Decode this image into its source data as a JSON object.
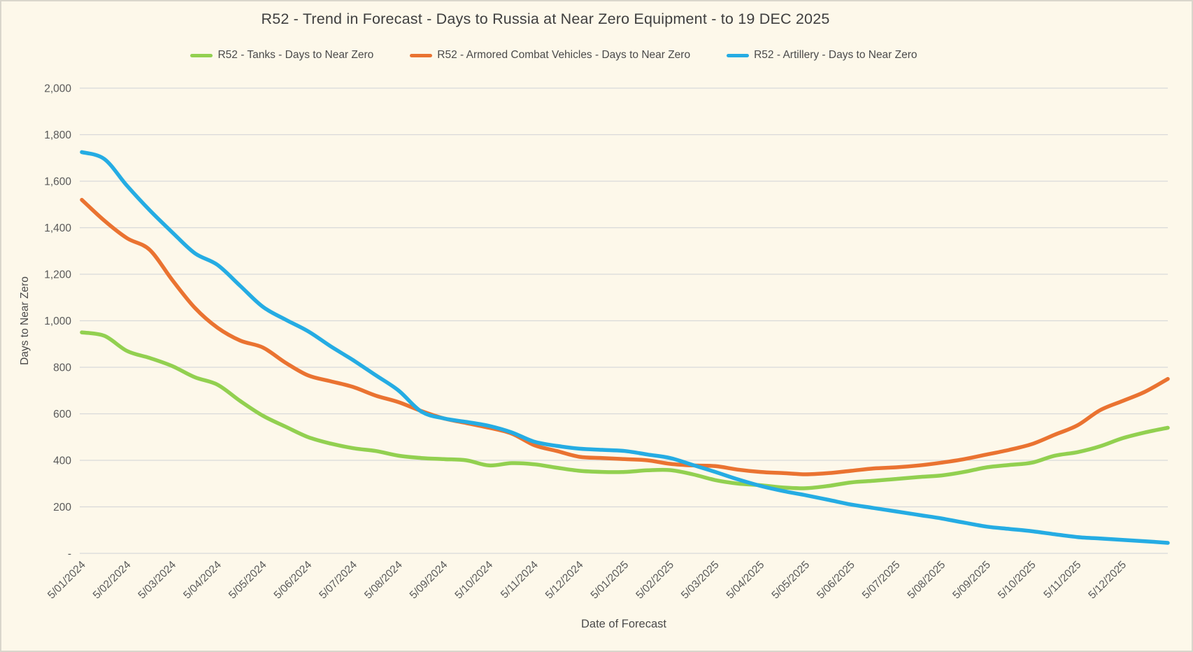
{
  "chart_data": {
    "type": "line",
    "title": "R52 - Trend in Forecast - Days to Russia at Near Zero Equipment - to 19 DEC 2025",
    "xlabel": "Date of Forecast",
    "ylabel": "Days to Near Zero",
    "ylim": [
      0,
      2000
    ],
    "grid": true,
    "legend_position": "top",
    "background_color": "#FDF8EA",
    "gridline_color": "#D9D9D9",
    "tick_text_color": "#595959",
    "title_text_color": "#3F3F3F",
    "y_ticks": [
      {
        "value": 2000,
        "label": "2,000"
      },
      {
        "value": 1800,
        "label": "1,800"
      },
      {
        "value": 1600,
        "label": "1,600"
      },
      {
        "value": 1400,
        "label": "1,400"
      },
      {
        "value": 1200,
        "label": "1,200"
      },
      {
        "value": 1000,
        "label": "1,000"
      },
      {
        "value": 800,
        "label": "800"
      },
      {
        "value": 600,
        "label": "600"
      },
      {
        "value": 400,
        "label": "400"
      },
      {
        "value": 200,
        "label": "200"
      },
      {
        "value": 0,
        "label": "-"
      }
    ],
    "x_tick_labels": [
      "5/01/2024",
      "5/02/2024",
      "5/03/2024",
      "5/04/2024",
      "5/05/2024",
      "5/06/2024",
      "5/07/2024",
      "5/08/2024",
      "5/09/2024",
      "5/10/2024",
      "5/11/2024",
      "5/12/2024",
      "5/01/2025",
      "5/02/2025",
      "5/03/2025",
      "5/04/2025",
      "5/05/2025",
      "5/06/2025",
      "5/07/2025",
      "5/08/2025",
      "5/09/2025",
      "5/10/2025",
      "5/11/2025",
      "5/12/2025"
    ],
    "x_tick_every_n_samples": 2,
    "sampling_note": "values estimated twice per month tick from 5/01/2024; final sample is the 19 DEC 2025 forecast",
    "series": [
      {
        "name": "R52 - Tanks - Days to Near Zero",
        "color": "#92D050",
        "values": [
          950,
          935,
          870,
          840,
          805,
          757,
          725,
          655,
          592,
          545,
          500,
          472,
          452,
          440,
          420,
          410,
          405,
          400,
          378,
          388,
          383,
          368,
          355,
          350,
          350,
          357,
          358,
          340,
          315,
          300,
          293,
          283,
          280,
          290,
          305,
          312,
          320,
          328,
          335,
          350,
          370,
          380,
          390,
          420,
          435,
          460,
          495,
          520,
          540
        ]
      },
      {
        "name": "R52 - Armored Combat Vehicles - Days to Near Zero",
        "color": "#EA7331",
        "values": [
          1520,
          1430,
          1355,
          1305,
          1175,
          1055,
          970,
          915,
          885,
          820,
          765,
          740,
          715,
          678,
          650,
          612,
          580,
          560,
          540,
          515,
          465,
          440,
          415,
          410,
          405,
          400,
          385,
          378,
          375,
          360,
          350,
          345,
          340,
          345,
          355,
          365,
          370,
          378,
          390,
          405,
          425,
          445,
          470,
          510,
          550,
          615,
          655,
          695,
          750
        ]
      },
      {
        "name": "R52 - Artillery - Days to Near Zero",
        "color": "#25ACE3",
        "values": [
          1725,
          1695,
          1580,
          1475,
          1380,
          1290,
          1240,
          1150,
          1060,
          1005,
          955,
          890,
          830,
          765,
          700,
          610,
          580,
          565,
          548,
          520,
          480,
          462,
          450,
          445,
          440,
          425,
          410,
          380,
          350,
          318,
          290,
          268,
          250,
          230,
          210,
          195,
          180,
          165,
          150,
          132,
          115,
          105,
          95,
          82,
          70,
          64,
          58,
          52,
          45
        ]
      }
    ]
  }
}
